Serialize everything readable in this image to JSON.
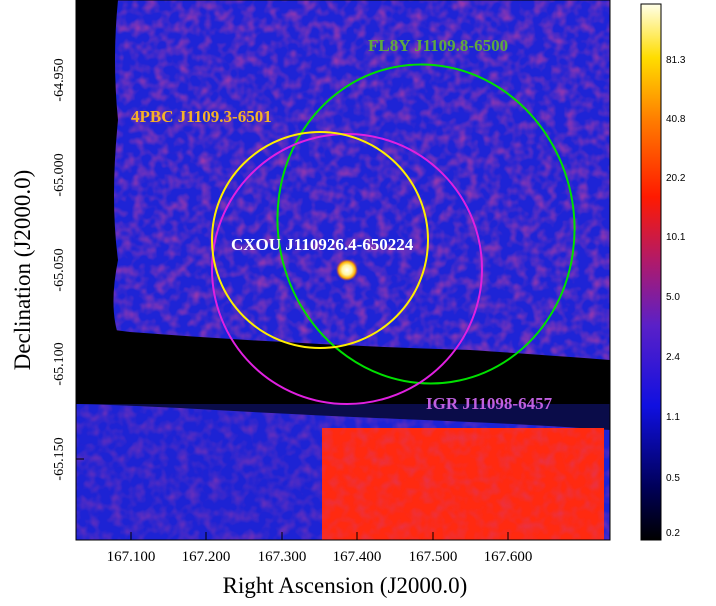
{
  "labels": {
    "fl8y": "FL8Y J1109.8-6500",
    "pbc": "4PBC J1109.3-6501",
    "cxou": "CXOU J110926.4-650224",
    "igr": "IGR J11098-6457"
  },
  "axes": {
    "xlabel": "Right Ascension (J2000.0)",
    "ylabel": "Declination (J2000.0)",
    "xticks": [
      "167.100",
      "167.200",
      "167.300",
      "167.400",
      "167.500",
      "167.600"
    ],
    "yticks": [
      "-64.950",
      "-65.000",
      "-65.050",
      "-65.100",
      "-65.150"
    ]
  },
  "colorbar": {
    "ticks": [
      "81.3",
      "40.8",
      "20.2",
      "10.1",
      "5.0",
      "2.4",
      "1.1",
      "0.5",
      "0.2"
    ]
  },
  "colors": {
    "fl8y": "#00e000",
    "pbc": "#ffee00",
    "igr": "#e020e0",
    "cxou_label": "#ffffff",
    "background": "#1a22d8"
  }
}
